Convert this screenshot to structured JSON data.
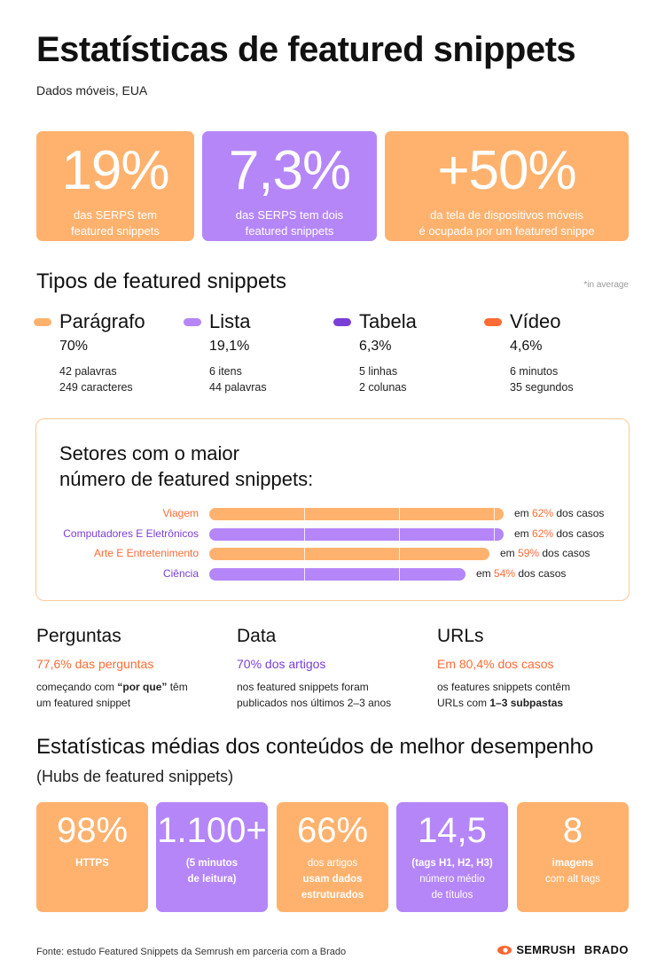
{
  "header": {
    "title": "Estatísticas de featured snippets",
    "subtitle": "Dados móveis, EUA"
  },
  "colors": {
    "orange": "#ffb26e",
    "purple": "#b586f8",
    "dark_purple": "#7a3fd6",
    "accent_orange": "#ff6b35"
  },
  "top_stats": [
    {
      "value": "19%",
      "line1": "das SERPS tem",
      "line2": "featured snippets"
    },
    {
      "value": "7,3%",
      "line1": "das SERPS tem dois",
      "line2": "featured snippets"
    },
    {
      "value": "+50%",
      "line1": "da tela de dispositivos móveis",
      "line2": "é ocupada por um featured snippe"
    }
  ],
  "types": {
    "title": "Tipos de featured snippets",
    "note": "*in average",
    "items": [
      {
        "name": "Parágrafo",
        "color": "#ffb26e",
        "pct": "70%",
        "d1": "42 palavras",
        "d2": "249 caracteres"
      },
      {
        "name": "Lista",
        "color": "#b586f8",
        "pct": "19,1%",
        "d1": "6 itens",
        "d2": "44 palavras"
      },
      {
        "name": "Tabela",
        "color": "#7a3fd6",
        "pct": "6,3%",
        "d1": "5 linhas",
        "d2": "2 colunas"
      },
      {
        "name": "Vídeo",
        "color": "#ff6b35",
        "pct": "4,6%",
        "d1": "6 minutos",
        "d2": "35 segundos"
      }
    ]
  },
  "sectors": {
    "title_line1": "Setores com o maior",
    "title_line2": "número de featured snippets:",
    "prefix": "em",
    "suffix": "dos casos",
    "items": [
      {
        "label": "Viagem",
        "value": "62%",
        "fraction": 0.62,
        "color": "orange"
      },
      {
        "label": "Computadores E Eletrônicos",
        "value": "62%",
        "fraction": 0.62,
        "color": "purple"
      },
      {
        "label": "Arte E Entretenimento",
        "value": "59%",
        "fraction": 0.59,
        "color": "orange"
      },
      {
        "label": "Ciência",
        "value": "54%",
        "fraction": 0.54,
        "color": "purple"
      }
    ]
  },
  "three": [
    {
      "title": "Perguntas",
      "highlight_num": "77,6%",
      "highlight_rest": " das perguntas",
      "hl_color": "orange",
      "t1_pre": "começando com ",
      "t1_bold": "“por que”",
      "t1_post": " têm",
      "t2_pre": "um featured snippet",
      "t2_bold": ""
    },
    {
      "title": "Data",
      "highlight_num": "70%",
      "highlight_rest": " dos artigos",
      "hl_color": "purple",
      "t1_pre": "nos featured snippets foram",
      "t1_bold": "",
      "t1_post": "",
      "t2_pre": "publicados nos últimos 2–3 anos",
      "t2_bold": ""
    },
    {
      "title": "URLs",
      "highlight_num": "Em 80,4%",
      "highlight_rest": " dos casos",
      "hl_color": "orange",
      "t1_pre": "os features snippets contêm",
      "t1_bold": "",
      "t1_post": "",
      "t2_pre": "URLs com ",
      "t2_bold": "1–3 subpastas"
    }
  ],
  "avg": {
    "title": "Estatísticas médias dos conteúdos de melhor desempenho",
    "subtitle": "(Hubs de featured snippets)",
    "cards": [
      {
        "value": "98%",
        "l1": "HTTPS",
        "l2": "",
        "l3": "",
        "bold": [
          true,
          false,
          false
        ],
        "color": "orange"
      },
      {
        "value": "1.100+",
        "l1": "(5 minutos",
        "l2": "de leitura)",
        "l3": "",
        "bold": [
          true,
          true,
          false
        ],
        "color": "purple"
      },
      {
        "value": "66%",
        "l1": "dos artigos",
        "l2": "usam dados",
        "l3": "estruturados",
        "bold": [
          false,
          true,
          true
        ],
        "color": "orange"
      },
      {
        "value": "14,5",
        "l1": "(tags H1, H2, H3)",
        "l2": "número médio",
        "l3": "de títulos",
        "bold": [
          true,
          false,
          false
        ],
        "color": "purple"
      },
      {
        "value": "8",
        "l1": "imagens",
        "l2": "com alt tags",
        "l3": "",
        "bold": [
          true,
          false,
          false
        ],
        "color": "orange"
      }
    ]
  },
  "footer": {
    "source": "Fonte: estudo Featured Snippets da Semrush em parceria com a Brado",
    "logo1": "SEMRUSH",
    "logo2": "BRADO"
  }
}
